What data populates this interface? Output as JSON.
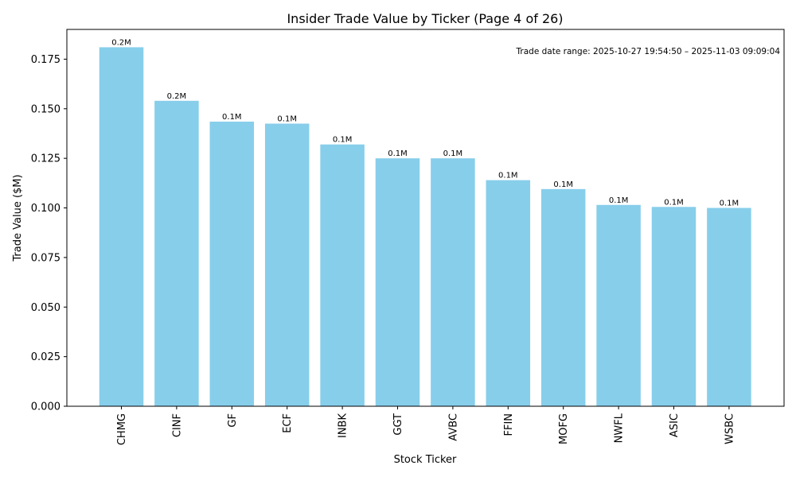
{
  "chart_data": {
    "type": "bar",
    "title": "Insider Trade Value by Ticker (Page 4 of 26)",
    "xlabel": "Stock Ticker",
    "ylabel": "Trade Value ($M)",
    "categories": [
      "CHMG",
      "CINF",
      "GF",
      "ECF",
      "INBK",
      "GGT",
      "AVBC",
      "FFIN",
      "MOFG",
      "NWFL",
      "ASIC",
      "WSBC"
    ],
    "values": [
      0.181,
      0.154,
      0.1435,
      0.1425,
      0.132,
      0.125,
      0.125,
      0.114,
      0.1095,
      0.1015,
      0.1005,
      0.1
    ],
    "data_labels": [
      "0.2M",
      "0.2M",
      "0.1M",
      "0.1M",
      "0.1M",
      "0.1M",
      "0.1M",
      "0.1M",
      "0.1M",
      "0.1M",
      "0.1M",
      "0.1M"
    ],
    "ylim": [
      0,
      0.19
    ],
    "yticks": [
      0.0,
      0.025,
      0.05,
      0.075,
      0.1,
      0.125,
      0.15,
      0.175
    ],
    "ytick_labels": [
      "0.000",
      "0.025",
      "0.050",
      "0.075",
      "0.100",
      "0.125",
      "0.150",
      "0.175"
    ],
    "annotation": "Trade date range: 2025-10-27 19:54:50 – 2025-11-03 09:09:04",
    "annotation_placement": "top-right",
    "bar_color": "#87ceeb",
    "grid": false
  }
}
